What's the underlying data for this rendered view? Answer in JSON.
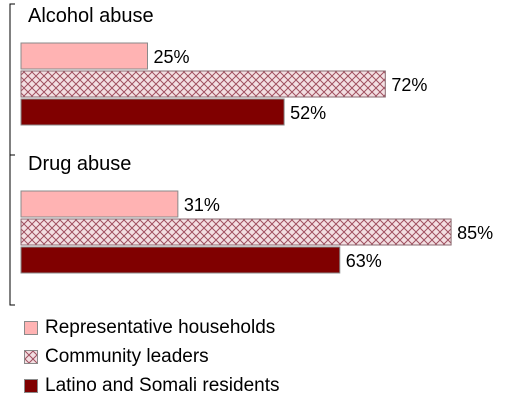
{
  "chart_data": {
    "type": "bar",
    "orientation": "horizontal",
    "title": "",
    "xlabel": "",
    "ylabel": "",
    "xlim": [
      0,
      100
    ],
    "grid": false,
    "legend_position": "bottom",
    "categories": [
      "Alcohol abuse",
      "Drug abuse"
    ],
    "series": [
      {
        "name": "Representative households",
        "values": [
          25,
          31
        ],
        "labels": [
          "25%",
          "31%"
        ],
        "color": "#ffb3b3",
        "pattern": "solid"
      },
      {
        "name": "Community leaders",
        "values": [
          72,
          85
        ],
        "labels": [
          "72%",
          "85%"
        ],
        "color": "#e8c7cc",
        "pattern": "crosshatch"
      },
      {
        "name": "Latino and Somali residents",
        "values": [
          52,
          63
        ],
        "labels": [
          "52%",
          "63%"
        ],
        "color": "#800000",
        "pattern": "solid"
      }
    ]
  }
}
